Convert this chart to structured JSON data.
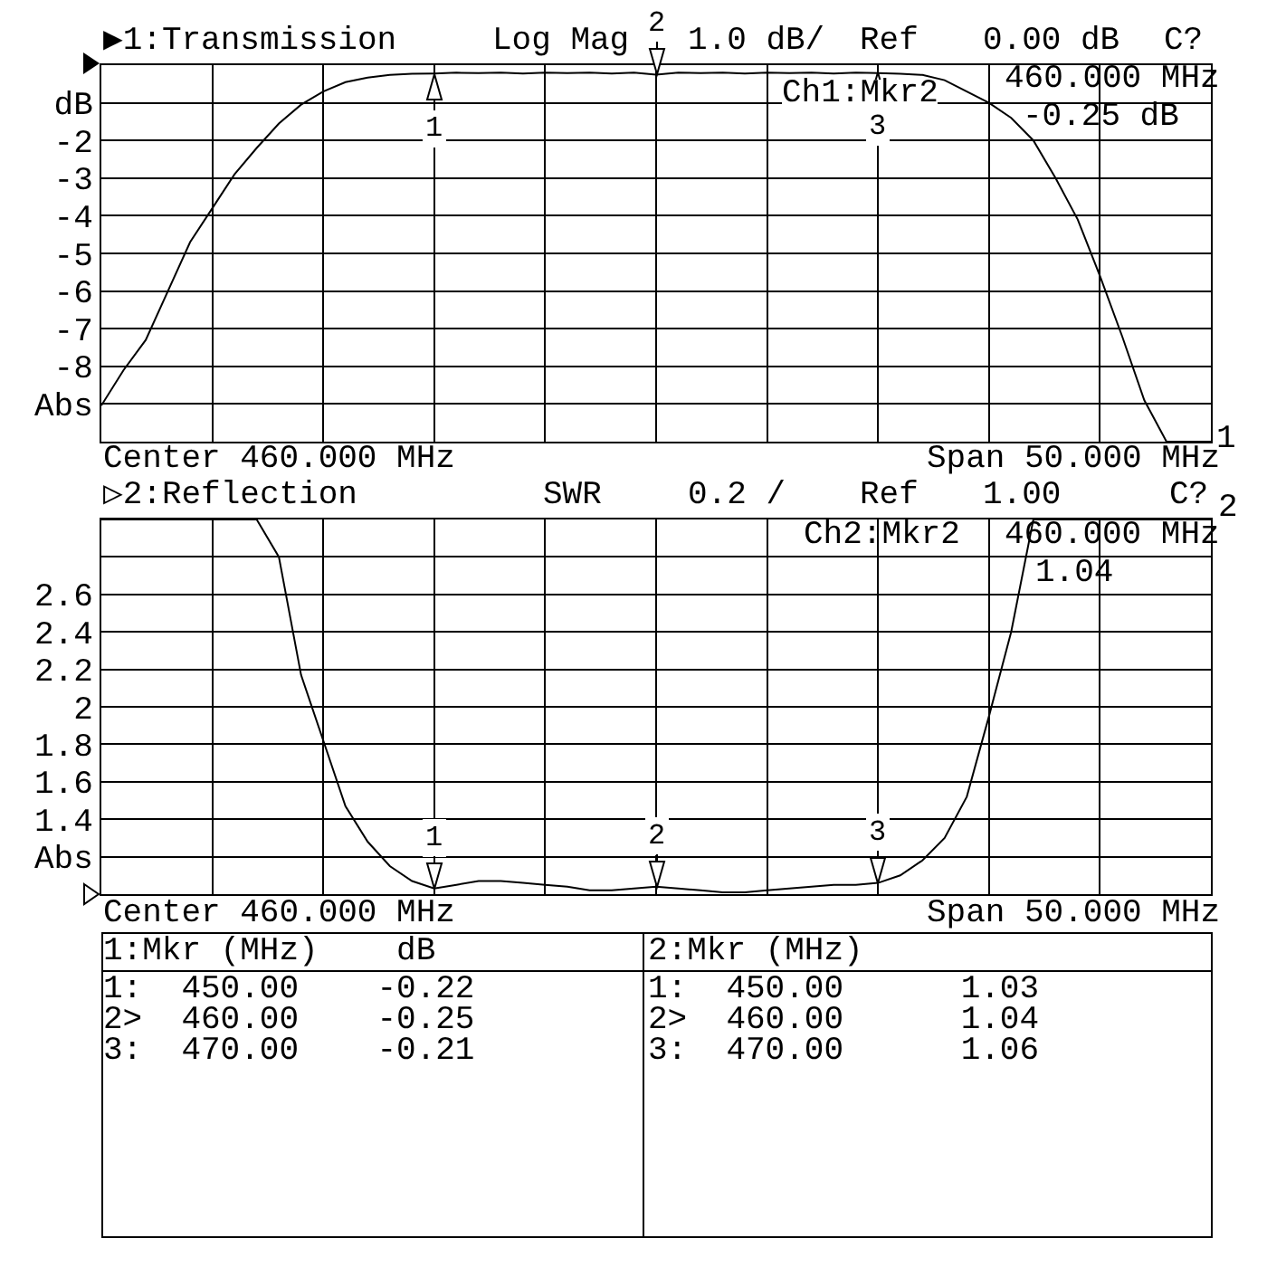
{
  "chart_data": [
    {
      "type": "line",
      "ylim": [
        -10,
        0
      ],
      "tick_labels": "y",
      "grid": true,
      "categories": [
        null,
        null,
        null,
        null,
        null,
        null,
        null,
        null,
        null,
        null,
        null,
        null,
        null,
        null,
        null,
        null,
        null,
        null,
        null,
        null,
        null,
        null,
        null,
        null,
        null,
        null,
        null,
        null,
        null,
        null,
        null,
        null,
        null,
        null,
        null,
        null,
        null,
        null,
        null,
        null,
        null,
        null,
        null,
        null,
        null,
        null,
        null,
        null,
        null,
        null,
        null
      ],
      "yticks": [
        {
          "value": 0,
          "label": null
        },
        {
          "value": -1,
          "label": "dB"
        },
        -2,
        -3,
        -4,
        -5,
        -6,
        -7,
        -8,
        {
          "value": -9,
          "label": "Abs"
        },
        {
          "value": -10,
          "label": null
        }
      ],
      "series": [
        {
          "color": "#000000",
          "values": [
            -9.04,
            -8.1,
            -7.3,
            -6.0,
            -4.7,
            -3.8,
            -2.9,
            -2.2,
            -1.55,
            -1.05,
            -0.7,
            -0.45,
            -0.33,
            -0.26,
            -0.23,
            -0.22,
            -0.2,
            -0.21,
            -0.2,
            -0.22,
            -0.2,
            -0.21,
            -0.2,
            -0.22,
            -0.2,
            -0.25,
            -0.2,
            -0.21,
            -0.2,
            -0.22,
            -0.2,
            -0.21,
            -0.2,
            -0.22,
            -0.2,
            -0.21,
            -0.23,
            -0.26,
            -0.4,
            -0.7,
            -1.0,
            -1.4,
            -2.0,
            -3.0,
            -4.1,
            -5.6,
            -7.2,
            -8.9,
            -10,
            -10,
            -10
          ]
        }
      ],
      "annotations": [
        "▶1:Transmission",
        "Log Mag",
        "1.0 dB/",
        "Ref",
        "0.00 dB",
        "C?",
        "Ch1:Mkr2",
        "460.000 MHz",
        "-0.25 dB",
        "Center 460.000 MHz",
        "Span 50.000 MHz",
        "1",
        "1:Mkr (MHz)    dB",
        "1:  450.00    -0.22",
        "2>  460.00    -0.25",
        "3:  470.00    -0.21",
        {
          "text": "1",
          "y": -0.22
        },
        {
          "text": "2",
          "y": -0.25
        },
        {
          "text": "3",
          "y": -0.21
        }
      ]
    },
    {
      "type": "line",
      "ylim": [
        1,
        3
      ],
      "tick_labels": "y",
      "grid": true,
      "categories": [
        null,
        null,
        null,
        null,
        null,
        null,
        null,
        null,
        null,
        null,
        null,
        null,
        null,
        null,
        null,
        null,
        null,
        null,
        null,
        null,
        null,
        null,
        null,
        null,
        null,
        null,
        null,
        null,
        null,
        null,
        null,
        null,
        null,
        null,
        null,
        null,
        null,
        null,
        null,
        null,
        null,
        null,
        null,
        null,
        null,
        null,
        null,
        null,
        null,
        null,
        null
      ],
      "yticks": [
        {
          "value": 3,
          "label": null
        },
        {
          "value": 2.8,
          "label": null
        },
        2.6,
        2.4,
        2.2,
        2,
        1.8,
        1.6,
        1.4,
        {
          "value": 1.2,
          "label": "Abs"
        },
        {
          "value": 1,
          "label": null
        }
      ],
      "series": [
        {
          "color": "#000000",
          "values": [
            3,
            3,
            3,
            3,
            3,
            3,
            3,
            3,
            2.8,
            2.17,
            1.82,
            1.47,
            1.28,
            1.15,
            1.07,
            1.03,
            1.05,
            1.07,
            1.07,
            1.06,
            1.05,
            1.04,
            1.02,
            1.02,
            1.03,
            1.04,
            1.03,
            1.02,
            1.01,
            1.01,
            1.02,
            1.03,
            1.04,
            1.05,
            1.05,
            1.06,
            1.1,
            1.18,
            1.3,
            1.52,
            1.95,
            2.4,
            3,
            3,
            3,
            3,
            3,
            3,
            3,
            3,
            3
          ]
        }
      ],
      "annotations": [
        "▷2:Reflection",
        "SWR",
        "0.2 /",
        "Ref",
        "1.00",
        "C?",
        "Ch2:Mkr2",
        "460.000 MHz",
        "1.04",
        "Center 460.000 MHz",
        "Span 50.000 MHz",
        "2",
        "2:Mkr (MHz)",
        "1:  450.00      1.03",
        "2>  460.00      1.04",
        "3:  470.00      1.06",
        {
          "text": "1",
          "y": 1.03
        },
        {
          "text": "2",
          "y": 1.04
        },
        {
          "text": "3",
          "y": 1.06
        }
      ]
    }
  ]
}
